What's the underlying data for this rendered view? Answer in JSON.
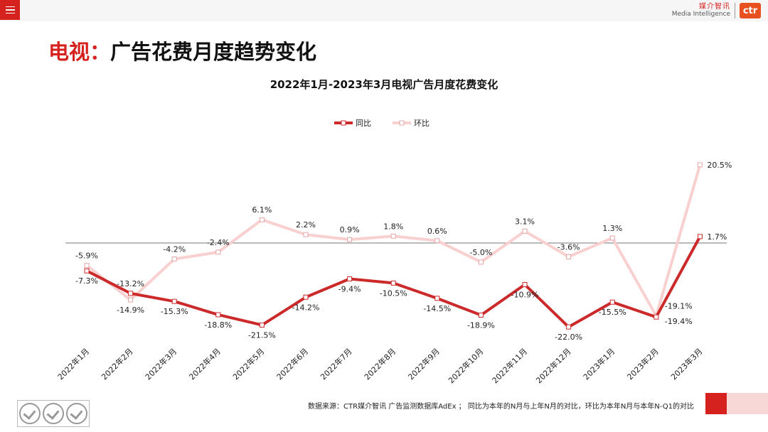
{
  "header": {
    "brand_cn": "媒介智讯",
    "brand_en": "Media Intelligence",
    "logo_text": "ctr"
  },
  "page_title": {
    "prefix": "电视：",
    "main": "广告花费月度趋势变化"
  },
  "footer": {
    "note": "数据来源：CTR媒介智讯 广告监测数据库AdEx ； 同比为本年的N月与上年N月的对比，环比为本年N月与本年N-Q1的对比"
  },
  "colors": {
    "accent": "#d6221f",
    "yoy": "#cc2a2a",
    "mom": "#f9d0d0"
  },
  "chart_data": {
    "type": "line",
    "title": "2022年1月-2023年3月电视广告月度花费变化",
    "legend_position": "top-center",
    "grid": false,
    "ylim": [
      -25,
      22
    ],
    "zero_line": true,
    "categories": [
      "2022年1月",
      "2022年2月",
      "2022年3月",
      "2022年4月",
      "2022年5月",
      "2022年6月",
      "2022年7月",
      "2022年8月",
      "2022年9月",
      "2022年10月",
      "2022年11月",
      "2022年12月",
      "2023年1月",
      "2023年2月",
      "2023年3月"
    ],
    "series": [
      {
        "name": "同比",
        "values": [
          -7.3,
          -13.2,
          -15.3,
          -18.8,
          -21.5,
          -14.2,
          -9.4,
          -10.5,
          -14.5,
          -18.9,
          -10.9,
          -22.0,
          -15.5,
          -19.4,
          1.7
        ],
        "labels": [
          "-7.3%",
          "-13.2%",
          "-15.3%",
          "-18.8%",
          "-21.5%",
          "-14.2%",
          "-9.4%",
          "-10.5%",
          "-14.5%",
          "-18.9%",
          "-10.9%",
          "-22.0%",
          "-15.5%",
          "-19.4%",
          "1.7%"
        ]
      },
      {
        "name": "环比",
        "values": [
          -5.9,
          -14.9,
          -4.2,
          -2.4,
          6.1,
          2.2,
          0.9,
          1.8,
          0.6,
          -5.0,
          3.1,
          -3.6,
          1.3,
          -19.1,
          20.5
        ],
        "labels": [
          "-5.9%",
          "-14.9%",
          "-4.2%",
          "-2.4%",
          "6.1%",
          "2.2%",
          "0.9%",
          "1.8%",
          "0.6%",
          "-5.0%",
          "3.1%",
          "-3.6%",
          "1.3%",
          "-19.1%",
          "20.5%"
        ]
      }
    ]
  }
}
